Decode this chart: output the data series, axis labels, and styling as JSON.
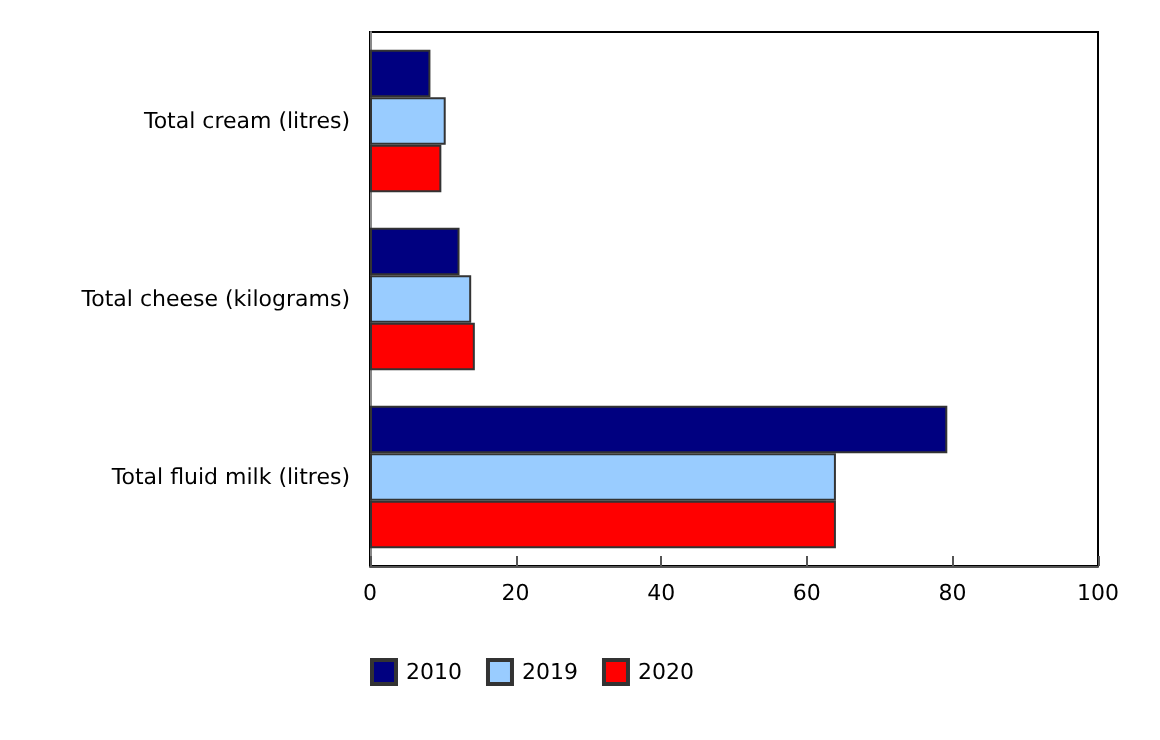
{
  "chart_data": {
    "type": "bar",
    "orientation": "horizontal",
    "categories": [
      "Total cream (litres)",
      "Total cheese (kilograms)",
      "Total fluid milk (litres)"
    ],
    "series": [
      {
        "name": "2010",
        "color": "#000080",
        "values": [
          8.3,
          12.3,
          79.3
        ]
      },
      {
        "name": "2019",
        "color": "#99ccff",
        "values": [
          10.4,
          13.9,
          64
        ]
      },
      {
        "name": "2020",
        "color": "#ff0000",
        "values": [
          9.8,
          14.4,
          64
        ]
      }
    ],
    "xlim": [
      0,
      100
    ],
    "xticks": [
      0,
      20,
      40,
      60,
      80,
      100
    ],
    "grid": false,
    "legend": "bottom"
  }
}
